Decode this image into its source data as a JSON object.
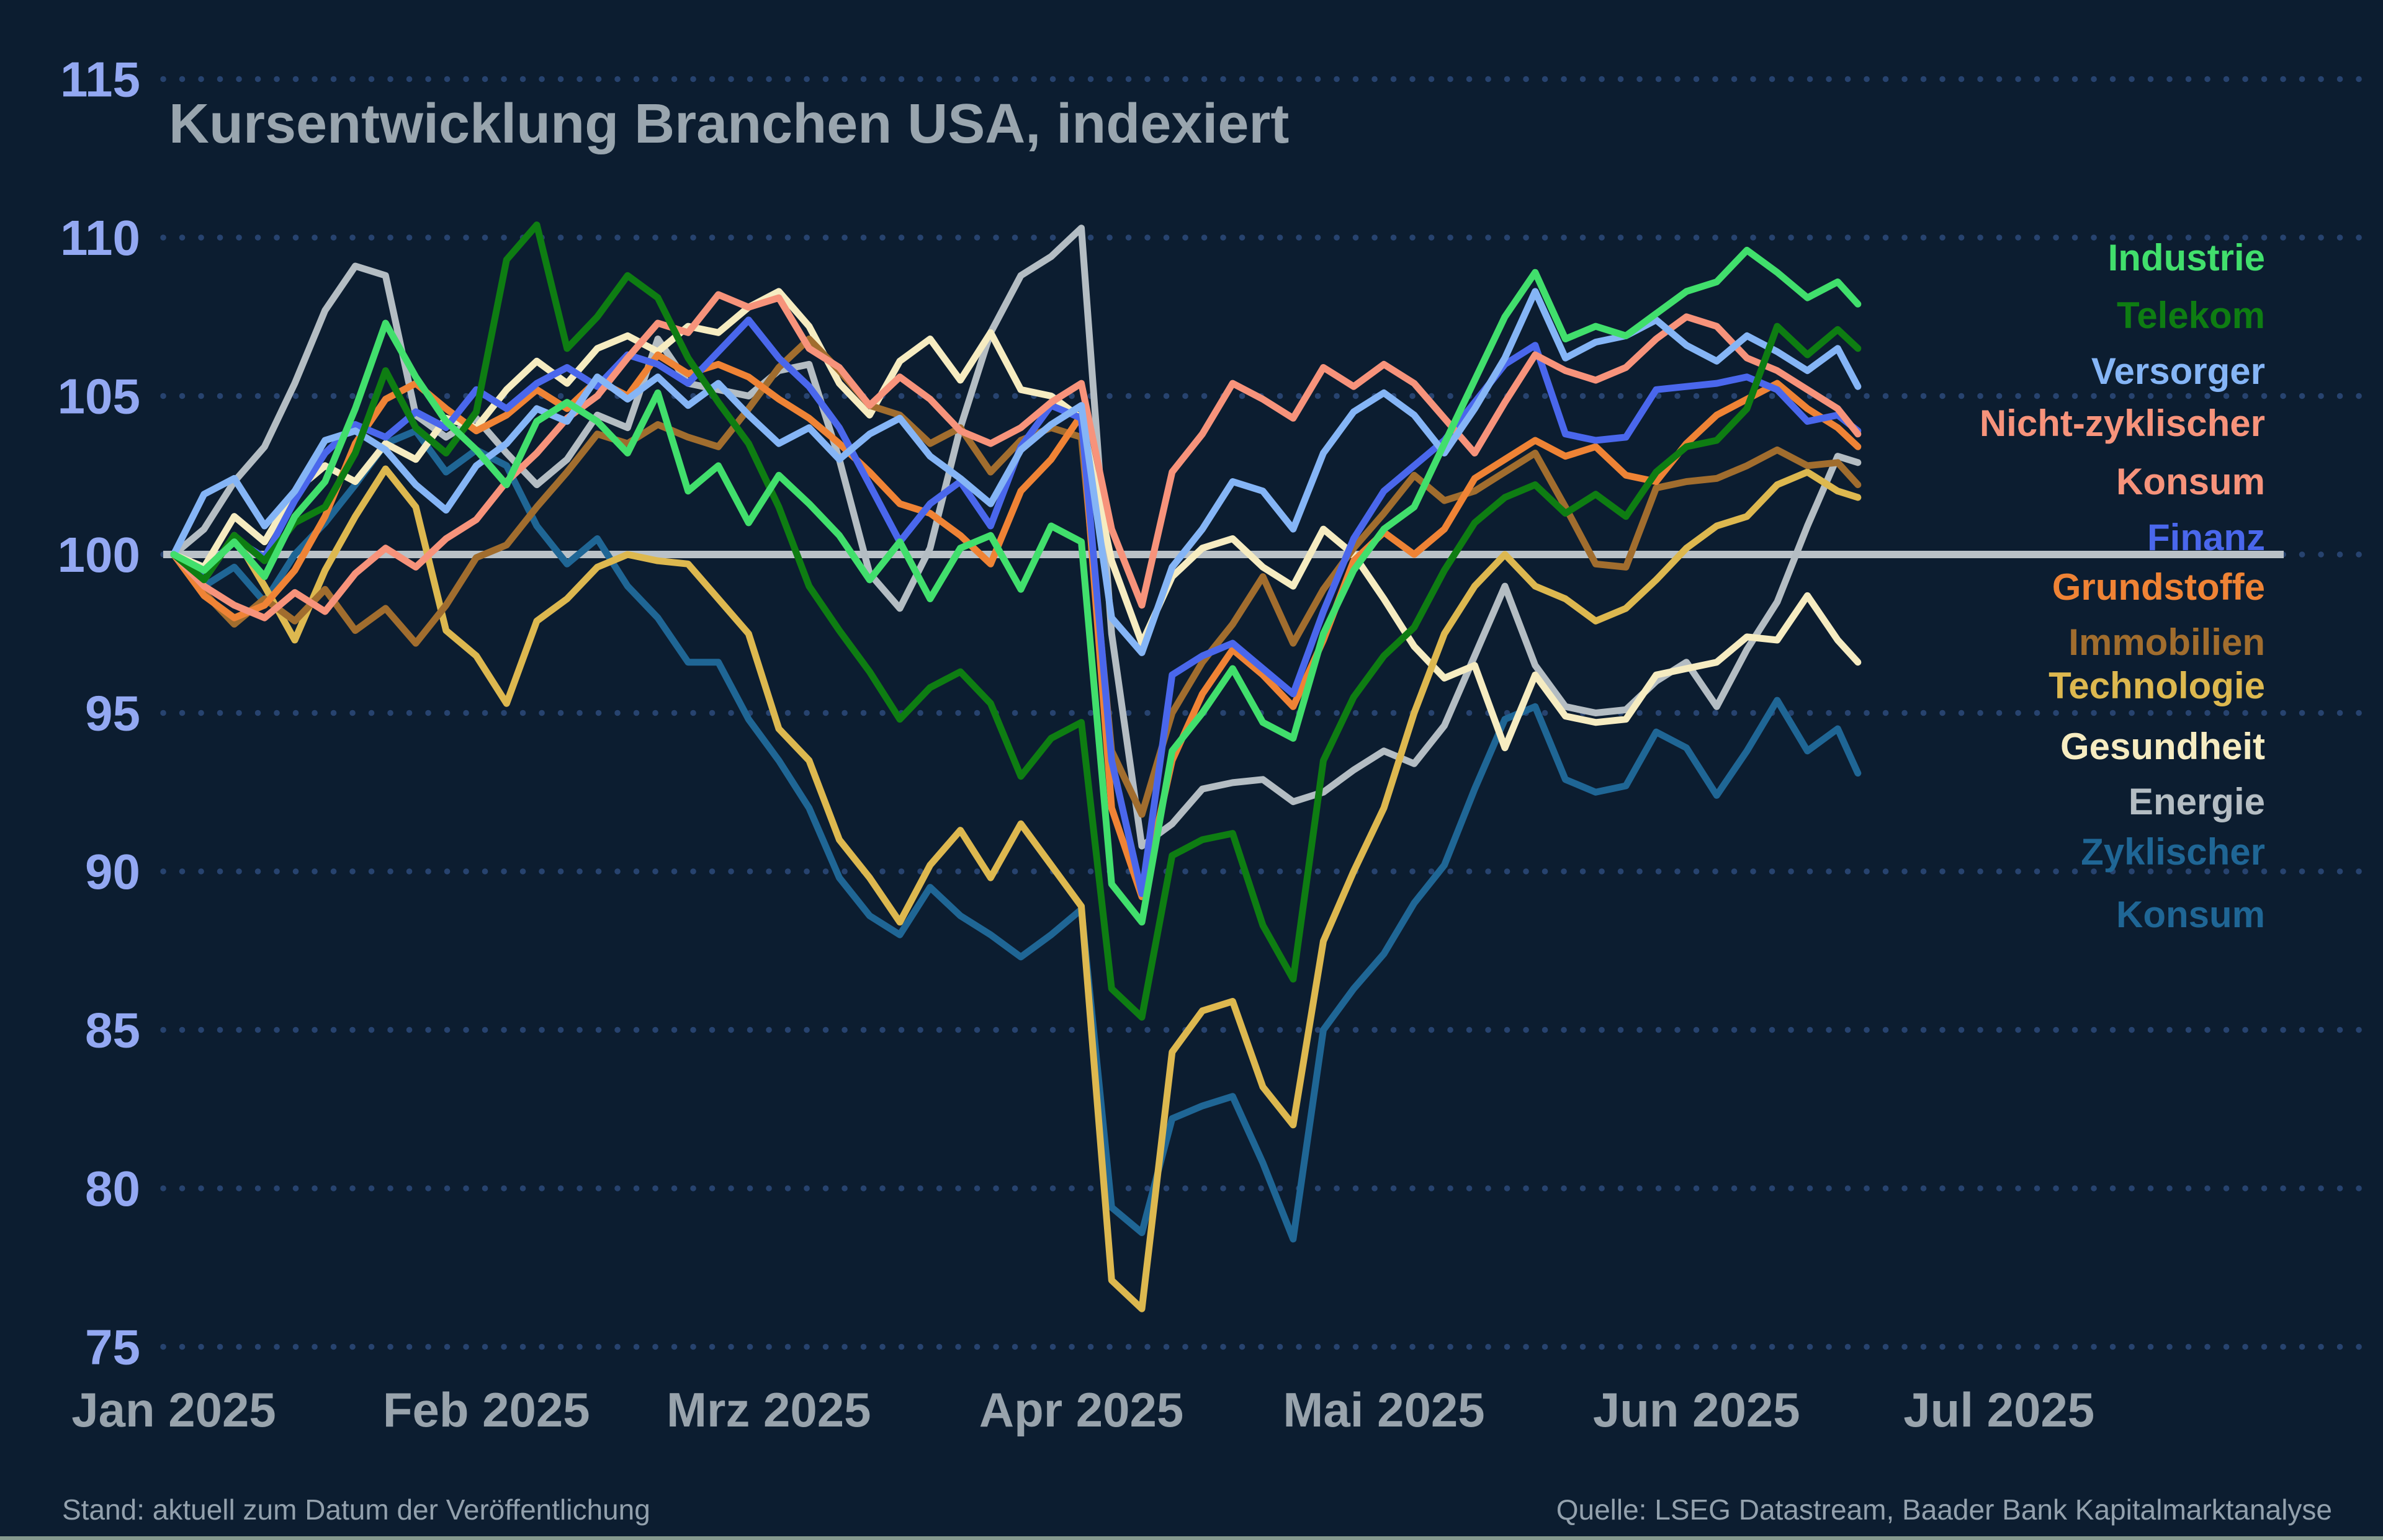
{
  "footer": {
    "status": "Stand: aktuell zum Datum der Veröffentlichung",
    "source": "Quelle: LSEG Datastream, Baader Bank Kapitalmarktanalyse"
  },
  "colors": {
    "background": "#0c1d30",
    "grid_dots": "#27436f",
    "baseline": "#b9c1c7",
    "title_text": "#99a5ae",
    "x_tick_text": "#98a3ac",
    "y_tick_text": "#93a8f2",
    "footer_text": "#93a1ad",
    "bottom_edge": "#9cb09f"
  },
  "chart_data": {
    "type": "line",
    "title": "Kursentwicklung Branchen USA, indexiert",
    "ylabel": "",
    "xlabel": "",
    "baseline_value": 100,
    "legend_position": "right",
    "grid": "dotted horizontal lines at every 5 units",
    "y_axis": {
      "ticks": [
        75,
        80,
        85,
        90,
        95,
        100,
        105,
        110,
        115
      ],
      "range": [
        75,
        115
      ]
    },
    "x_axis": {
      "tick_labels": [
        "Jan 2025",
        "Feb 2025",
        "Mrz 2025",
        "Apr 2025",
        "Mai 2025",
        "Jun 2025",
        "Jul 2025"
      ],
      "tick_days": [
        0,
        31,
        59,
        90,
        120,
        151,
        181
      ]
    },
    "x_days": [
      0,
      3,
      6,
      9,
      12,
      15,
      18,
      21,
      24,
      27,
      30,
      33,
      36,
      39,
      42,
      45,
      48,
      51,
      54,
      57,
      60,
      63,
      66,
      69,
      72,
      75,
      78,
      81,
      84,
      87,
      90,
      93,
      96,
      99,
      102,
      105,
      108,
      111,
      114,
      117,
      120,
      123,
      126,
      129,
      132,
      135,
      138,
      141,
      144,
      147,
      150,
      153,
      156,
      159,
      162,
      165,
      167
    ],
    "series": [
      {
        "name": "Industrie",
        "color": "#41df6c",
        "values": [
          100,
          99.5,
          100.4,
          99.3,
          101.2,
          102.3,
          104.6,
          107.3,
          105.6,
          104.2,
          103.3,
          102.2,
          104.2,
          104.8,
          104.2,
          103.2,
          105.1,
          102.0,
          102.8,
          101.0,
          102.5,
          101.6,
          100.6,
          99.2,
          100.4,
          98.6,
          100.2,
          100.6,
          98.9,
          100.9,
          100.4,
          89.6,
          88.4,
          93.8,
          95.0,
          96.4,
          94.7,
          94.2,
          97.5,
          99.5,
          100.8,
          101.5,
          103.5,
          105.5,
          107.5,
          108.9,
          106.8,
          107.2,
          106.9,
          107.6,
          108.3,
          108.6,
          109.6,
          108.9,
          108.1,
          108.6,
          107.9
        ]
      },
      {
        "name": "Telekom",
        "color": "#0e7d12",
        "values": [
          100,
          99.2,
          100.6,
          99.8,
          101.0,
          101.5,
          103.2,
          105.8,
          104.0,
          103.2,
          104.5,
          109.3,
          110.4,
          106.5,
          107.5,
          108.8,
          108.1,
          106.2,
          104.8,
          103.5,
          101.5,
          99.0,
          97.6,
          96.3,
          94.8,
          95.8,
          96.3,
          95.3,
          93.0,
          94.2,
          94.7,
          86.3,
          85.4,
          90.5,
          91.0,
          91.2,
          88.3,
          86.6,
          93.5,
          95.5,
          96.8,
          97.7,
          99.5,
          101.0,
          101.8,
          102.2,
          101.3,
          101.9,
          101.2,
          102.6,
          103.4,
          103.6,
          104.6,
          107.2,
          106.3,
          107.1,
          106.5
        ]
      },
      {
        "name": "Versorger",
        "color": "#85b5f6",
        "values": [
          100,
          101.9,
          102.4,
          100.9,
          102.0,
          103.6,
          103.9,
          103.3,
          102.2,
          101.4,
          102.8,
          103.5,
          104.6,
          104.2,
          105.6,
          104.9,
          105.6,
          104.7,
          105.4,
          104.4,
          103.5,
          104.0,
          103.0,
          103.8,
          104.3,
          103.1,
          102.4,
          101.6,
          103.3,
          104.1,
          104.7,
          98.0,
          96.9,
          99.6,
          100.8,
          102.3,
          102.0,
          100.8,
          103.2,
          104.5,
          105.1,
          104.4,
          103.2,
          104.6,
          106.2,
          108.3,
          106.2,
          106.7,
          106.9,
          107.4,
          106.6,
          106.1,
          106.9,
          106.4,
          105.8,
          106.5,
          105.3
        ]
      },
      {
        "name": "Nicht-zyklischer Konsum",
        "color": "#f7937b",
        "values": [
          100,
          99.0,
          98.4,
          98.0,
          98.8,
          98.2,
          99.4,
          100.2,
          99.6,
          100.5,
          101.1,
          102.3,
          103.2,
          104.3,
          105.0,
          106.2,
          107.3,
          107.0,
          108.2,
          107.8,
          108.1,
          106.5,
          105.9,
          104.7,
          105.6,
          104.9,
          103.9,
          103.5,
          104.0,
          104.8,
          105.4,
          100.8,
          98.4,
          102.6,
          103.8,
          105.4,
          104.9,
          104.3,
          105.9,
          105.3,
          106.0,
          105.4,
          104.3,
          103.2,
          104.8,
          106.3,
          105.8,
          105.5,
          105.9,
          106.8,
          107.5,
          107.2,
          106.2,
          105.8,
          105.2,
          104.6,
          103.8
        ]
      },
      {
        "name": "Finanz",
        "color": "#4a67ec",
        "values": [
          100,
          99.4,
          100.5,
          99.9,
          101.7,
          103.2,
          104.1,
          103.7,
          104.5,
          104.0,
          105.2,
          104.6,
          105.4,
          105.9,
          105.3,
          106.3,
          106.0,
          105.4,
          106.4,
          107.4,
          106.2,
          105.3,
          104.0,
          102.2,
          100.4,
          101.6,
          102.3,
          100.9,
          103.4,
          104.7,
          104.3,
          93.5,
          89.3,
          96.2,
          96.8,
          97.2,
          96.4,
          95.6,
          98.2,
          100.5,
          102.0,
          102.8,
          103.6,
          104.8,
          106.0,
          106.6,
          103.8,
          103.6,
          103.7,
          105.2,
          105.3,
          105.4,
          105.6,
          105.2,
          104.2,
          104.4,
          103.9
        ]
      },
      {
        "name": "Grundstoffe",
        "color": "#ef8335",
        "values": [
          100,
          98.7,
          98.0,
          98.4,
          99.5,
          101.2,
          103.5,
          104.9,
          105.4,
          104.6,
          103.9,
          104.4,
          105.2,
          104.6,
          105.5,
          105.0,
          106.3,
          105.7,
          106.0,
          105.6,
          104.9,
          104.3,
          103.5,
          102.6,
          101.6,
          101.3,
          100.6,
          99.7,
          102.0,
          103.0,
          104.4,
          92.0,
          89.2,
          93.5,
          95.6,
          97.0,
          96.2,
          95.2,
          97.3,
          99.8,
          100.7,
          100.0,
          100.8,
          102.4,
          103.0,
          103.6,
          103.1,
          103.4,
          102.5,
          102.3,
          103.5,
          104.4,
          104.9,
          105.4,
          104.6,
          104.0,
          103.4
        ]
      },
      {
        "name": "Immobilien",
        "color": "#a16d2e",
        "values": [
          100,
          98.8,
          97.8,
          98.6,
          97.9,
          98.9,
          97.6,
          98.3,
          97.2,
          98.4,
          99.9,
          100.3,
          101.5,
          102.6,
          103.8,
          103.5,
          104.1,
          103.7,
          103.4,
          104.6,
          105.9,
          106.8,
          105.8,
          104.7,
          104.4,
          103.5,
          104.0,
          102.6,
          103.6,
          104.0,
          103.7,
          93.8,
          91.8,
          95.0,
          96.6,
          97.8,
          99.3,
          97.2,
          98.9,
          100.2,
          101.3,
          102.5,
          101.7,
          102.0,
          102.6,
          103.2,
          101.5,
          99.7,
          99.6,
          102.1,
          102.3,
          102.4,
          102.8,
          103.3,
          102.8,
          102.9,
          102.2
        ]
      },
      {
        "name": "Technologie",
        "color": "#ddb84f",
        "values": [
          100,
          99.2,
          100.6,
          99.0,
          97.3,
          99.5,
          101.2,
          102.7,
          101.5,
          97.6,
          96.8,
          95.3,
          97.9,
          98.6,
          99.6,
          100.0,
          99.8,
          99.7,
          98.6,
          97.5,
          94.5,
          93.5,
          91.0,
          89.8,
          88.4,
          90.2,
          91.3,
          89.8,
          91.5,
          90.2,
          88.9,
          77.1,
          76.2,
          84.3,
          85.6,
          85.9,
          83.2,
          82.0,
          87.8,
          90.0,
          92.0,
          95.0,
          97.5,
          99.0,
          100.0,
          99.0,
          98.6,
          97.9,
          98.3,
          99.2,
          100.2,
          100.9,
          101.2,
          102.2,
          102.6,
          102.0,
          101.8
        ]
      },
      {
        "name": "Gesundheit",
        "color": "#f6ecc1",
        "values": [
          100,
          99.6,
          101.2,
          100.4,
          102.0,
          102.8,
          102.3,
          103.5,
          103.0,
          104.3,
          104.0,
          105.2,
          106.1,
          105.4,
          106.5,
          106.9,
          106.4,
          107.2,
          107.0,
          107.8,
          108.3,
          107.2,
          105.4,
          104.4,
          106.1,
          106.8,
          105.5,
          107.0,
          105.2,
          105.0,
          104.3,
          99.8,
          97.2,
          99.3,
          100.2,
          100.5,
          99.6,
          99.0,
          100.8,
          100.0,
          98.6,
          97.1,
          96.1,
          96.5,
          93.9,
          96.2,
          94.9,
          94.7,
          94.8,
          96.2,
          96.4,
          96.6,
          97.4,
          97.3,
          98.7,
          97.3,
          96.6
        ]
      },
      {
        "name": "Energie",
        "color": "#b4bdc3",
        "values": [
          100,
          100.8,
          102.3,
          103.4,
          105.4,
          107.7,
          109.1,
          108.8,
          104.4,
          103.7,
          104.3,
          103.2,
          102.2,
          103.0,
          104.4,
          104.0,
          106.8,
          105.4,
          105.2,
          105.0,
          105.8,
          106.0,
          103.0,
          99.4,
          98.3,
          100.2,
          104.0,
          107.0,
          108.8,
          109.4,
          110.3,
          97.5,
          90.8,
          91.5,
          92.6,
          92.8,
          92.9,
          92.2,
          92.5,
          93.2,
          93.8,
          93.4,
          94.6,
          96.8,
          99.0,
          96.5,
          95.2,
          95.0,
          95.1,
          96.0,
          96.6,
          95.2,
          97.0,
          98.5,
          100.9,
          103.1,
          102.9
        ]
      },
      {
        "name": "Zyklischer Konsum",
        "color": "#1f6695",
        "values": [
          100,
          99.0,
          99.6,
          98.5,
          100.0,
          101.0,
          102.2,
          103.5,
          103.9,
          102.6,
          103.3,
          102.8,
          100.9,
          99.7,
          100.5,
          99.0,
          98.0,
          96.6,
          96.6,
          94.8,
          93.5,
          92.0,
          89.8,
          88.6,
          88.0,
          89.5,
          88.6,
          88.0,
          87.3,
          88.0,
          88.8,
          79.4,
          78.6,
          82.2,
          82.6,
          82.9,
          80.8,
          78.4,
          85.0,
          86.3,
          87.4,
          89.0,
          90.2,
          92.6,
          94.8,
          95.2,
          92.9,
          92.5,
          92.7,
          94.4,
          93.9,
          92.4,
          93.8,
          95.4,
          93.8,
          94.5,
          93.1
        ]
      }
    ]
  }
}
